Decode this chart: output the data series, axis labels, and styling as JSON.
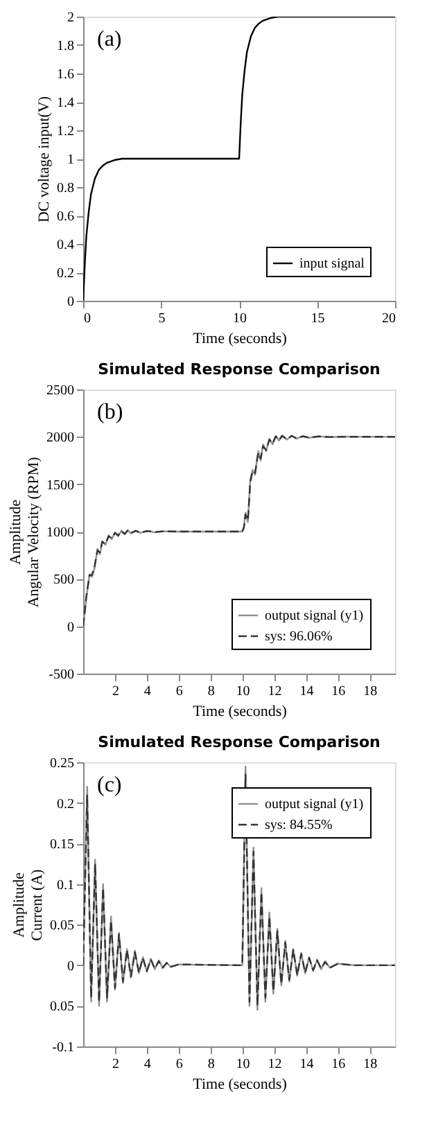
{
  "chart_data": [
    {
      "type": "line",
      "ylabel": "DC voltage input(V)",
      "xlabel": "Time (seconds)",
      "annotations": [
        "(a)"
      ],
      "xlim": [
        0,
        20
      ],
      "xticks": [
        0,
        5,
        10,
        15,
        20
      ],
      "ylim": [
        0,
        2
      ],
      "yticks": [
        0,
        0.2,
        0.4,
        0.6,
        0.8,
        1,
        1.2,
        1.4,
        1.6,
        1.8,
        2
      ],
      "grid": false,
      "legend": "bottom right",
      "line_style": "solid",
      "series": [
        {
          "name": "input signal",
          "color": "#000000",
          "x": [
            0,
            0.1,
            0.2,
            0.35,
            0.5,
            0.75,
            1,
            1.25,
            1.5,
            2,
            2.5,
            3,
            10,
            10.1,
            10.2,
            10.35,
            10.5,
            10.75,
            11,
            11.25,
            11.5,
            12,
            12.5,
            13,
            20
          ],
          "values": [
            0,
            0.25,
            0.45,
            0.62,
            0.75,
            0.86,
            0.92,
            0.95,
            0.97,
            0.99,
            1,
            1,
            1,
            1.25,
            1.45,
            1.62,
            1.75,
            1.86,
            1.92,
            1.95,
            1.97,
            1.99,
            2,
            2,
            2
          ]
        }
      ]
    },
    {
      "type": "line",
      "title": "Simulated Response Comparison",
      "ylabel": "Amplitude\nAngular Velocity (RPM)",
      "xlabel": "Time (seconds)",
      "annotations": [
        "(b)"
      ],
      "xlim": [
        0,
        19.6
      ],
      "xticks": [
        2,
        4,
        6,
        8,
        10,
        12,
        14,
        16,
        18
      ],
      "ylim": [
        -500,
        2500
      ],
      "yticks": [
        -500,
        0,
        500,
        1000,
        1500,
        2000,
        2500
      ],
      "grid": false,
      "legend": "bottom right",
      "series": [
        {
          "name": "output signal (y1)",
          "color": "#909090",
          "line_style": "solid",
          "x": [
            0,
            0.2,
            0.4,
            0.55,
            0.7,
            0.9,
            1.05,
            1.2,
            1.4,
            1.6,
            1.8,
            2,
            2.2,
            2.4,
            2.6,
            2.8,
            3,
            3.3,
            3.6,
            4,
            4.5,
            5,
            6,
            10,
            10.1,
            10.2,
            10.35,
            10.5,
            10.65,
            10.8,
            11,
            11.15,
            11.3,
            11.5,
            11.7,
            11.9,
            12.1,
            12.3,
            12.5,
            12.8,
            13.1,
            13.4,
            13.8,
            14.2,
            14.8,
            15.5,
            16.5,
            19.6
          ],
          "values": [
            0,
            300,
            550,
            520,
            600,
            820,
            760,
            900,
            860,
            960,
            920,
            990,
            950,
            1010,
            970,
            1015,
            980,
            1010,
            985,
            1008,
            992,
            1003,
            1000,
            1000,
            1050,
            1200,
            1100,
            1550,
            1650,
            1600,
            1850,
            1750,
            1920,
            1850,
            1980,
            1920,
            2010,
            1960,
            2015,
            1970,
            2012,
            1980,
            2008,
            1990,
            2005,
            1997,
            2002,
            2000
          ]
        },
        {
          "name": "sys: 96.06%",
          "color": "#333333",
          "line_style": "dashed",
          "x": [
            0,
            0.2,
            0.4,
            0.55,
            0.7,
            0.9,
            1.05,
            1.2,
            1.4,
            1.6,
            1.8,
            2,
            2.2,
            2.4,
            2.6,
            2.8,
            3,
            3.3,
            3.6,
            4,
            4.5,
            5,
            6,
            10,
            10.1,
            10.2,
            10.35,
            10.5,
            10.65,
            10.8,
            11,
            11.15,
            11.3,
            11.5,
            11.7,
            11.9,
            12.1,
            12.3,
            12.5,
            12.8,
            13.1,
            13.4,
            13.8,
            14.2,
            14.8,
            15.5,
            16.5,
            19.6
          ],
          "values": [
            0,
            320,
            540,
            540,
            620,
            800,
            780,
            890,
            870,
            950,
            930,
            985,
            960,
            1005,
            975,
            1010,
            985,
            1007,
            988,
            1005,
            995,
            1002,
            1000,
            1000,
            1040,
            1180,
            1120,
            1520,
            1640,
            1620,
            1830,
            1770,
            1900,
            1860,
            1970,
            1930,
            2005,
            1965,
            2010,
            1975,
            2010,
            1985,
            2005,
            1992,
            2004,
            1998,
            2001,
            2000
          ]
        }
      ]
    },
    {
      "type": "line",
      "title": "Simulated Response Comparison",
      "ylabel": "Amplitude\nCurrent (A)",
      "xlabel": "Time (seconds)",
      "annotations": [
        "(c)"
      ],
      "xlim": [
        0,
        19.6
      ],
      "xticks": [
        2,
        4,
        6,
        8,
        10,
        12,
        14,
        16,
        18
      ],
      "ylim": [
        -0.1,
        0.25
      ],
      "yticks": [
        {
          "value": -0.1,
          "label": "-0.1"
        },
        {
          "value": -0.05,
          "label": "0.05"
        },
        0,
        0.05,
        0.1,
        0.15,
        0.2,
        0.25
      ],
      "grid": false,
      "legend": "top right",
      "series": [
        {
          "name": "output signal (y1)",
          "color": "#909090",
          "line_style": "solid",
          "x": [
            0,
            0.25,
            0.5,
            0.75,
            1,
            1.25,
            1.5,
            1.75,
            2,
            2.25,
            2.5,
            2.75,
            3,
            3.25,
            3.5,
            3.75,
            4,
            4.25,
            4.5,
            4.75,
            5,
            5.25,
            5.5,
            6,
            10,
            10.2,
            10.45,
            10.7,
            10.95,
            11.2,
            11.45,
            11.7,
            11.95,
            12.2,
            12.45,
            12.7,
            12.95,
            13.2,
            13.45,
            13.7,
            13.95,
            14.2,
            14.45,
            14.7,
            14.95,
            15.2,
            15.5,
            16,
            17,
            19.6
          ],
          "values": [
            0,
            0.22,
            -0.045,
            0.13,
            -0.05,
            0.1,
            -0.045,
            0.06,
            -0.03,
            0.04,
            -0.022,
            0.02,
            -0.015,
            0.018,
            -0.01,
            0.01,
            -0.008,
            0.008,
            -0.005,
            0.006,
            -0.003,
            0.003,
            -0.002,
            0.001,
            0,
            0.245,
            -0.05,
            0.145,
            -0.055,
            0.095,
            -0.045,
            0.065,
            -0.035,
            0.045,
            -0.025,
            0.03,
            -0.02,
            0.02,
            -0.013,
            0.015,
            -0.01,
            0.01,
            -0.007,
            0.007,
            -0.005,
            0.005,
            -0.003,
            0.002,
            0,
            0
          ]
        },
        {
          "name": "sys: 84.55%",
          "color": "#333333",
          "line_style": "dashed",
          "x": [
            0,
            0.25,
            0.5,
            0.75,
            1,
            1.25,
            1.5,
            1.75,
            2,
            2.25,
            2.5,
            2.75,
            3,
            3.25,
            3.5,
            3.75,
            4,
            4.25,
            4.5,
            4.75,
            5,
            5.25,
            5.5,
            6,
            10,
            10.2,
            10.45,
            10.7,
            10.95,
            11.2,
            11.45,
            11.7,
            11.95,
            12.2,
            12.45,
            12.7,
            12.95,
            13.2,
            13.45,
            13.7,
            13.95,
            14.2,
            14.45,
            14.7,
            14.95,
            15.2,
            15.5,
            16,
            17,
            19.6
          ],
          "values": [
            0,
            0.21,
            -0.04,
            0.125,
            -0.045,
            0.095,
            -0.04,
            0.055,
            -0.028,
            0.038,
            -0.02,
            0.019,
            -0.014,
            0.016,
            -0.009,
            0.009,
            -0.007,
            0.007,
            -0.004,
            0.005,
            -0.003,
            0.003,
            -0.002,
            0.001,
            0,
            0.235,
            -0.045,
            0.14,
            -0.05,
            0.09,
            -0.04,
            0.06,
            -0.032,
            0.042,
            -0.023,
            0.028,
            -0.018,
            0.019,
            -0.012,
            0.014,
            -0.009,
            0.009,
            -0.006,
            0.006,
            -0.004,
            0.004,
            -0.003,
            0.002,
            0,
            0
          ]
        }
      ]
    }
  ]
}
